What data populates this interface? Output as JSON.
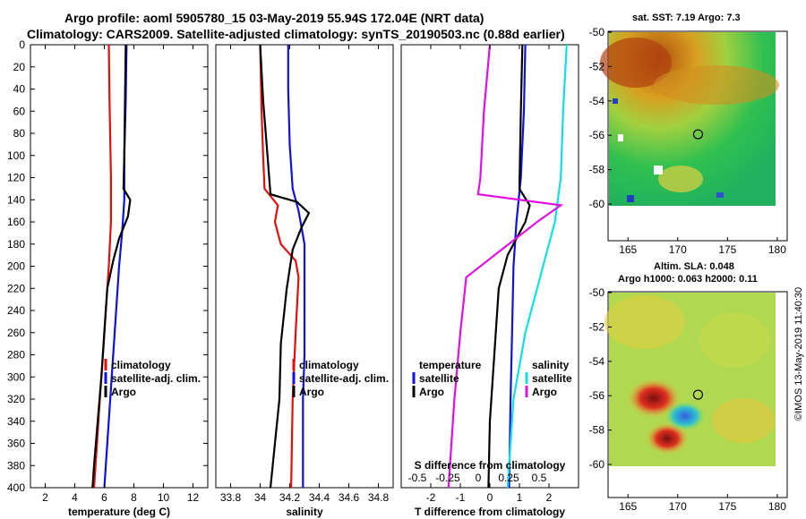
{
  "figure": {
    "title_line1": "Argo profile: aoml 5905780_15 03-May-2019 55.94S 172.04E (NRT data)",
    "title_line2": "Climatology: CARS2009. Satellite-adjusted climatology: synTS_20190503.nc (0.88d earlier)",
    "timestamp": "©IMOS 13-May-2019 11:40:30"
  },
  "colors": {
    "climatology": "#e01010",
    "satellite": "#1010e0",
    "argo": "#000000",
    "s_satellite": "#10e0e0",
    "s_argo": "#e010e0"
  },
  "chart_data": [
    {
      "type": "line",
      "id": "temperature",
      "xlabel": "temperature (deg C)",
      "ylabel": "",
      "xlim": [
        1,
        13
      ],
      "ylim": [
        400,
        0
      ],
      "xticks": [
        "2",
        "4",
        "6",
        "8",
        "10",
        "12"
      ],
      "yticks": [
        "0",
        "20",
        "40",
        "60",
        "80",
        "100",
        "120",
        "140",
        "160",
        "180",
        "200",
        "220",
        "240",
        "260",
        "280",
        "300",
        "320",
        "340",
        "360",
        "380",
        "400"
      ],
      "legend": [
        "climatology",
        "satellite-adj. clim.",
        "Argo"
      ],
      "legend_position": "lower-right",
      "series": [
        {
          "name": "climatology",
          "color": "#e01010",
          "points": [
            [
              6.3,
              0
            ],
            [
              6.35,
              50
            ],
            [
              6.45,
              120
            ],
            [
              6.45,
              160
            ],
            [
              6.3,
              200
            ],
            [
              6.1,
              240
            ],
            [
              5.9,
              280
            ],
            [
              5.7,
              320
            ],
            [
              5.5,
              360
            ],
            [
              5.3,
              400
            ]
          ]
        },
        {
          "name": "satellite-adj. clim.",
          "color": "#1010e0",
          "points": [
            [
              7.5,
              0
            ],
            [
              7.45,
              50
            ],
            [
              7.35,
              100
            ],
            [
              7.35,
              140
            ],
            [
              7.2,
              170
            ],
            [
              7.0,
              200
            ],
            [
              6.8,
              240
            ],
            [
              6.6,
              280
            ],
            [
              6.4,
              320
            ],
            [
              6.2,
              360
            ],
            [
              6.0,
              400
            ]
          ]
        },
        {
          "name": "Argo",
          "color": "#000000",
          "points": [
            [
              7.45,
              0
            ],
            [
              7.4,
              50
            ],
            [
              7.35,
              100
            ],
            [
              7.3,
              130
            ],
            [
              7.75,
              140
            ],
            [
              7.6,
              155
            ],
            [
              7.0,
              175
            ],
            [
              6.6,
              195
            ],
            [
              6.2,
              220
            ],
            [
              6.0,
              260
            ],
            [
              5.8,
              300
            ],
            [
              5.55,
              340
            ],
            [
              5.3,
              380
            ],
            [
              5.2,
              400
            ]
          ]
        }
      ]
    },
    {
      "type": "line",
      "id": "salinity",
      "xlabel": "salinity",
      "ylabel": "",
      "xlim": [
        33.7,
        34.9
      ],
      "ylim": [
        400,
        0
      ],
      "xticks": [
        "33.8",
        "34",
        "34.2",
        "34.4",
        "34.6",
        "34.8"
      ],
      "legend": [
        "climatology",
        "satellite-adj. clim.",
        "Argo"
      ],
      "legend_position": "lower-right",
      "series": [
        {
          "name": "climatology",
          "color": "#e01010",
          "points": [
            [
              34.0,
              0
            ],
            [
              34.01,
              60
            ],
            [
              34.02,
              100
            ],
            [
              34.03,
              130
            ],
            [
              34.12,
              145
            ],
            [
              34.1,
              160
            ],
            [
              34.14,
              180
            ],
            [
              34.24,
              195
            ],
            [
              34.26,
              210
            ],
            [
              34.24,
              260
            ],
            [
              34.22,
              320
            ],
            [
              34.21,
              400
            ]
          ]
        },
        {
          "name": "satellite-adj. clim.",
          "color": "#1010e0",
          "points": [
            [
              34.19,
              0
            ],
            [
              34.19,
              40
            ],
            [
              34.2,
              90
            ],
            [
              34.22,
              130
            ],
            [
              34.26,
              150
            ],
            [
              34.3,
              180
            ],
            [
              34.3,
              230
            ],
            [
              34.3,
              280
            ],
            [
              34.29,
              320
            ],
            [
              34.29,
              400
            ]
          ]
        },
        {
          "name": "Argo",
          "color": "#000000",
          "points": [
            [
              34.0,
              0
            ],
            [
              34.02,
              50
            ],
            [
              34.05,
              100
            ],
            [
              34.07,
              135
            ],
            [
              34.25,
              142
            ],
            [
              34.33,
              152
            ],
            [
              34.28,
              165
            ],
            [
              34.22,
              185
            ],
            [
              34.18,
              220
            ],
            [
              34.14,
              270
            ],
            [
              34.13,
              320
            ],
            [
              34.1,
              360
            ],
            [
              34.07,
              400
            ]
          ]
        }
      ]
    },
    {
      "type": "line",
      "id": "difference",
      "xlabel": "T difference from climatology",
      "xlabel_top": "S difference from climatology",
      "ylabel": "",
      "xlim": [
        -3,
        3
      ],
      "ylim": [
        400,
        0
      ],
      "xticks": [
        "-2",
        "-1",
        "0",
        "1",
        "2"
      ],
      "xticks_secondary": [
        "-0.5",
        "-0.25",
        "0",
        "0.25",
        "0.5"
      ],
      "legend_temperature_title": "temperature",
      "legend_temperature": [
        "satellite",
        "Argo"
      ],
      "legend_salinity_title": "salinity",
      "legend_salinity": [
        "satellite",
        "Argo"
      ],
      "series": [
        {
          "name": "temperature satellite",
          "color": "#1010e0",
          "points": [
            [
              1.2,
              0
            ],
            [
              1.15,
              60
            ],
            [
              1.05,
              120
            ],
            [
              0.9,
              160
            ],
            [
              0.8,
              200
            ],
            [
              0.75,
              260
            ],
            [
              0.7,
              320
            ],
            [
              0.65,
              400
            ]
          ]
        },
        {
          "name": "temperature Argo",
          "color": "#000000",
          "points": [
            [
              1.1,
              0
            ],
            [
              1.05,
              60
            ],
            [
              1.0,
              130
            ],
            [
              1.35,
              145
            ],
            [
              1.2,
              160
            ],
            [
              0.6,
              190
            ],
            [
              0.3,
              220
            ],
            [
              0.2,
              260
            ],
            [
              0.1,
              300
            ],
            [
              0.0,
              340
            ],
            [
              -0.05,
              400
            ]
          ]
        },
        {
          "name": "salinity satellite",
          "color": "#10e0e0",
          "points": [
            [
              0.65,
              0
            ],
            [
              0.62,
              60
            ],
            [
              0.6,
              120
            ],
            [
              0.55,
              160
            ],
            [
              0.45,
              200
            ],
            [
              0.3,
              260
            ],
            [
              0.2,
              320
            ],
            [
              0.15,
              400
            ]
          ]
        },
        {
          "name": "salinity Argo",
          "color": "#e010e0",
          "points": [
            [
              0.0,
              0
            ],
            [
              -0.05,
              60
            ],
            [
              -0.08,
              120
            ],
            [
              -0.1,
              135
            ],
            [
              0.6,
              145
            ],
            [
              0.4,
              160
            ],
            [
              0.1,
              185
            ],
            [
              -0.2,
              210
            ],
            [
              -0.25,
              260
            ],
            [
              -0.3,
              320
            ],
            [
              -0.35,
              400
            ]
          ]
        }
      ]
    }
  ],
  "maps": [
    {
      "id": "sst",
      "title": "sat. SST: 7.19 Argo: 7.3",
      "xticks": [
        "165",
        "170",
        "175",
        "180"
      ],
      "yticks": [
        "-50",
        "-52",
        "-54",
        "-56",
        "-58",
        "-60"
      ],
      "argo_marker": [
        172.04,
        -55.94
      ]
    },
    {
      "id": "sla",
      "title_line1": "Altim. SLA: 0.048",
      "title_line2": "Argo h1000: 0.063 h2000: 0.11",
      "xticks": [
        "165",
        "170",
        "175",
        "180"
      ],
      "yticks": [
        "-50",
        "-52",
        "-54",
        "-56",
        "-58",
        "-60"
      ],
      "argo_marker": [
        172.04,
        -55.94
      ]
    }
  ]
}
